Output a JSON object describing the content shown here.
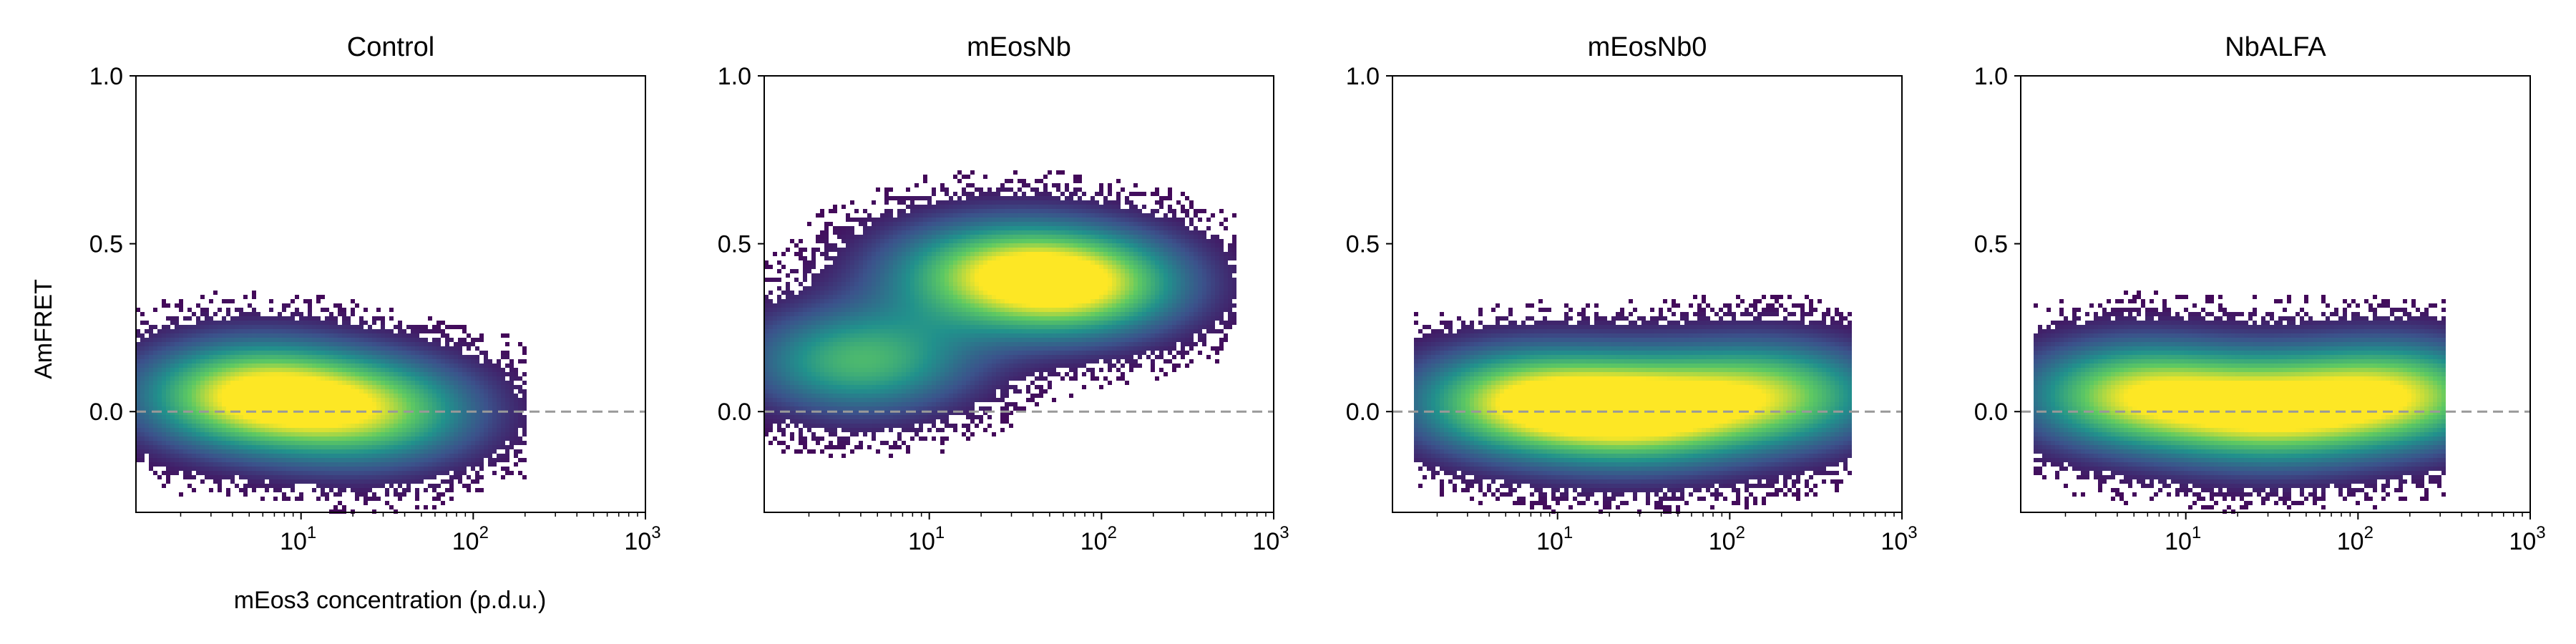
{
  "figure": {
    "ylabel": "AmFRET",
    "xlabel": "mEos3 concentration (p.d.u.)"
  },
  "colors": {
    "zero_line": "#999999",
    "colormap": [
      "#440154",
      "#3b528b",
      "#21918c",
      "#5ec962",
      "#fde725"
    ]
  },
  "chart_data": [
    {
      "type": "heatmap",
      "title": "Control",
      "x_scale": "log",
      "xlim": [
        1.1,
        1000
      ],
      "ylim": [
        -0.3,
        1.0
      ],
      "xticks": [
        "10^1",
        "10^2",
        "10^3"
      ],
      "yticks": [
        "1.0",
        "0.5",
        "0.0"
      ],
      "ytick_values": [
        1.0,
        0.5,
        0.0
      ],
      "reference_line_y": 0.0,
      "density_clusters": [
        {
          "x": 5,
          "y": 0.05,
          "weight": 1.0
        },
        {
          "x": 25,
          "y": 0.0,
          "weight": 0.8
        }
      ],
      "x_extent": [
        1.1,
        200
      ]
    },
    {
      "type": "heatmap",
      "title": "mEosNb",
      "x_scale": "log",
      "xlim": [
        1.1,
        1000
      ],
      "ylim": [
        -0.3,
        1.0
      ],
      "xticks": [
        "10^1",
        "10^2",
        "10^3"
      ],
      "yticks": [
        "1.0",
        "0.5",
        "0.0"
      ],
      "ytick_values": [
        1.0,
        0.5,
        0.0
      ],
      "reference_line_y": 0.0,
      "density_clusters": [
        {
          "x": 4,
          "y": 0.15,
          "weight": 0.7
        },
        {
          "x": 70,
          "y": 0.38,
          "weight": 1.0
        },
        {
          "x": 20,
          "y": 0.42,
          "weight": 0.6
        }
      ],
      "x_extent": [
        1.1,
        600
      ]
    },
    {
      "type": "heatmap",
      "title": "mEosNb0",
      "x_scale": "log",
      "xlim": [
        1.1,
        1000
      ],
      "ylim": [
        -0.3,
        1.0
      ],
      "xticks": [
        "10^1",
        "10^2",
        "10^3"
      ],
      "yticks": [
        "1.0",
        "0.5",
        "0.0"
      ],
      "ytick_values": [
        1.0,
        0.5,
        0.0
      ],
      "reference_line_y": 0.0,
      "density_clusters": [
        {
          "x": 6,
          "y": 0.03,
          "weight": 0.9
        },
        {
          "x": 30,
          "y": 0.0,
          "weight": 1.0
        },
        {
          "x": 180,
          "y": 0.05,
          "weight": 0.8
        }
      ],
      "x_extent": [
        1.5,
        500
      ]
    },
    {
      "type": "heatmap",
      "title": "NbALFA",
      "x_scale": "log",
      "xlim": [
        1.1,
        1000
      ],
      "ylim": [
        -0.3,
        1.0
      ],
      "xticks": [
        "10^1",
        "10^2",
        "10^3"
      ],
      "yticks": [
        "1.0",
        "0.5",
        "0.0"
      ],
      "ytick_values": [
        1.0,
        0.5,
        0.0
      ],
      "reference_line_y": 0.0,
      "density_clusters": [
        {
          "x": 5,
          "y": 0.05,
          "weight": 0.9
        },
        {
          "x": 30,
          "y": 0.0,
          "weight": 0.9
        },
        {
          "x": 170,
          "y": 0.05,
          "weight": 0.9
        }
      ],
      "x_extent": [
        1.3,
        330
      ]
    }
  ]
}
